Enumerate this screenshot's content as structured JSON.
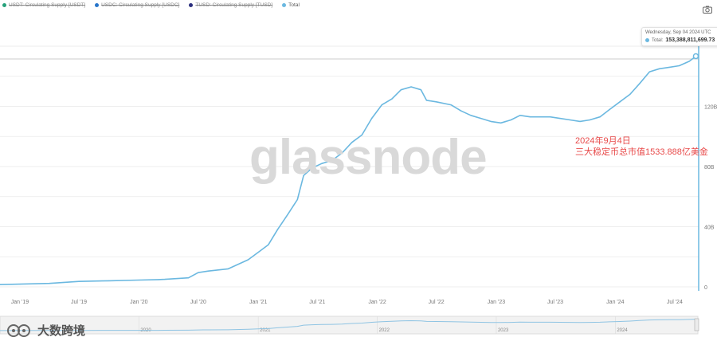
{
  "legend": [
    {
      "label": "USDT: Circulating Supply [USDT]",
      "color": "#26a17b",
      "active": false
    },
    {
      "label": "USDC: Circulating Supply [USDC]",
      "color": "#2775ca",
      "active": false
    },
    {
      "label": "TUSD: Circulating Supply [TUSD]",
      "color": "#2b2f7e",
      "active": false
    },
    {
      "label": "Total",
      "color": "#6bb8e0",
      "active": true
    }
  ],
  "tooltip": {
    "date": "Wednesday, Sep 04 2024 UTC",
    "label": "Total:",
    "value": "153,388,811,699.73"
  },
  "watermark": "glassnode",
  "annotation": {
    "line1": "2024年9月4日",
    "line2": "三大稳定币总市值1533.888亿美金"
  },
  "logo": {
    "text": "大数跨境",
    "icon": "dashu-logo-icon"
  },
  "icons": {
    "camera": "camera-icon"
  },
  "colors": {
    "line": "#6bb8e0",
    "annotation": "#e84a4a"
  },
  "chart_data": {
    "type": "line",
    "x_tick_labels": [
      "Jan '19",
      "Jul '19",
      "Jan '20",
      "Jul '20",
      "Jan '21",
      "Jul '21",
      "Jan '22",
      "Jul '22",
      "Jan '23",
      "Jul '23",
      "Jan '24",
      "Jul '24"
    ],
    "y_tick_labels": [
      "0",
      "40B",
      "80B",
      "120B"
    ],
    "navigator_labels": [
      "2020",
      "2021",
      "2022",
      "2023",
      "2024"
    ],
    "ylim": [
      0,
      160
    ],
    "y_unit": "B",
    "series": [
      {
        "name": "Total",
        "x": [
          "2018-11-01",
          "2019-01-01",
          "2019-04-01",
          "2019-07-01",
          "2019-10-01",
          "2020-01-01",
          "2020-03-01",
          "2020-03-20",
          "2020-06-01",
          "2020-07-01",
          "2020-08-01",
          "2020-10-01",
          "2020-12-01",
          "2021-01-01",
          "2021-02-01",
          "2021-03-01",
          "2021-04-01",
          "2021-05-01",
          "2021-05-20",
          "2021-06-15",
          "2021-07-15",
          "2021-08-15",
          "2021-09-15",
          "2021-10-15",
          "2021-11-15",
          "2021-12-15",
          "2022-01-15",
          "2022-02-15",
          "2022-03-15",
          "2022-04-15",
          "2022-05-15",
          "2022-06-01",
          "2022-07-01",
          "2022-08-15",
          "2022-09-15",
          "2022-10-15",
          "2022-11-15",
          "2022-12-15",
          "2023-01-15",
          "2023-02-15",
          "2023-03-15",
          "2023-04-15",
          "2023-05-15",
          "2023-06-15",
          "2023-07-15",
          "2023-08-15",
          "2023-09-15",
          "2023-10-15",
          "2023-11-15",
          "2023-12-15",
          "2024-01-15",
          "2024-02-15",
          "2024-03-15",
          "2024-04-15",
          "2024-05-15",
          "2024-06-15",
          "2024-07-15",
          "2024-08-15",
          "2024-09-04"
        ],
        "y": [
          1.5,
          1.8,
          2.3,
          3.6,
          4.0,
          4.5,
          4.8,
          5.0,
          6.0,
          9.5,
          10.5,
          12.0,
          18.0,
          23.0,
          28.0,
          38.0,
          48.0,
          58.0,
          74.0,
          79.0,
          82.0,
          84.0,
          89.0,
          96.0,
          101.0,
          112.0,
          121.0,
          125.0,
          131.0,
          133.0,
          131.0,
          124.0,
          123.0,
          121.0,
          117.0,
          114.0,
          112.0,
          110.0,
          109.0,
          111.0,
          114.0,
          113.0,
          113.0,
          113.0,
          112.0,
          111.0,
          110.0,
          111.0,
          113.0,
          118.0,
          123.0,
          128.0,
          135.0,
          143.0,
          145.0,
          146.0,
          147.0,
          150.0,
          153.39
        ]
      }
    ]
  }
}
